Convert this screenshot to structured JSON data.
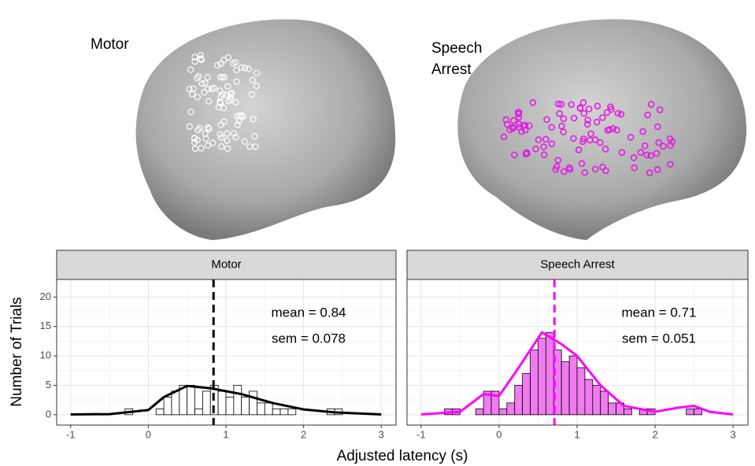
{
  "brain_labels": [
    "Motor",
    "Speech Arrest"
  ],
  "xlabel": "Adjusted latency (s)",
  "ylabel": "Number of Trials",
  "chart_data": [
    {
      "type": "histogram",
      "title": "Motor",
      "bins": [
        -1,
        -0.9,
        -0.8,
        -0.7,
        -0.6,
        -0.5,
        -0.4,
        -0.3,
        -0.2,
        -0.1,
        0,
        0.1,
        0.2,
        0.3,
        0.4,
        0.5,
        0.6,
        0.7,
        0.8,
        0.9,
        1,
        1.1,
        1.2,
        1.3,
        1.4,
        1.5,
        1.6,
        1.7,
        1.8,
        1.9,
        2,
        2.1,
        2.2,
        2.3,
        2.4,
        2.5,
        2.6,
        2.7,
        2.8,
        2.9,
        3
      ],
      "counts": [
        0,
        0,
        0,
        0,
        0,
        0,
        0,
        1,
        0,
        0,
        0,
        1,
        3,
        4,
        5,
        5,
        1,
        4,
        5,
        4,
        3,
        5,
        3,
        4,
        2,
        2,
        1,
        1,
        1,
        0,
        0,
        0,
        0,
        1,
        1,
        0,
        0,
        0,
        0,
        0
      ],
      "color": "#ffffff",
      "curve_color": "#000000",
      "density": {
        "x": [
          -1,
          -0.5,
          0,
          0.2,
          0.5,
          0.8,
          1.2,
          1.6,
          2,
          2.4,
          3
        ],
        "y": [
          0.05,
          0.1,
          0.8,
          3,
          4.9,
          4.5,
          3.5,
          2,
          0.9,
          0.4,
          0.05
        ]
      },
      "mean_line": 0.84,
      "annotations": [
        "mean = 0.84",
        "sem = 0.078"
      ],
      "xlim": [
        -1.18,
        3.19
      ],
      "ylim": [
        -1.76,
        23.0
      ],
      "xticks": [
        -1,
        0,
        1,
        2,
        3
      ],
      "yticks": [
        0,
        5,
        10,
        15,
        20
      ],
      "ytick_labels": true,
      "grid": true
    },
    {
      "type": "histogram",
      "title": "Speech Arrest",
      "bins": [
        -1,
        -0.9,
        -0.8,
        -0.7,
        -0.6,
        -0.5,
        -0.4,
        -0.3,
        -0.2,
        -0.1,
        0,
        0.1,
        0.2,
        0.3,
        0.4,
        0.5,
        0.6,
        0.7,
        0.8,
        0.9,
        1,
        1.1,
        1.2,
        1.3,
        1.4,
        1.5,
        1.6,
        1.7,
        1.8,
        1.9,
        2,
        2.1,
        2.2,
        2.3,
        2.4,
        2.5,
        2.6,
        2.7,
        2.8,
        2.9,
        3
      ],
      "counts": [
        0,
        0,
        0,
        1,
        1,
        0,
        0,
        1,
        4,
        4,
        1,
        2,
        5,
        7,
        11,
        13,
        14,
        11,
        9,
        10,
        8,
        6,
        5,
        4,
        2,
        2,
        1,
        0,
        1,
        1,
        0,
        0,
        0,
        0,
        1,
        1,
        0,
        0,
        0,
        0
      ],
      "color": "#f07cf0",
      "curve_color": "#ff00ff",
      "density": {
        "x": [
          -1,
          -0.5,
          -0.2,
          0,
          0.2,
          0.4,
          0.55,
          0.8,
          1,
          1.3,
          1.6,
          2,
          2.3,
          2.5,
          2.7,
          3
        ],
        "y": [
          0.05,
          0.5,
          3.5,
          3.2,
          7,
          11,
          14,
          12,
          10,
          5,
          1.5,
          0.5,
          1.2,
          1.5,
          0.5,
          0.05
        ]
      },
      "mean_line": 0.71,
      "annotations": [
        "mean = 0.71",
        "sem = 0.051"
      ],
      "xlim": [
        -1.18,
        3.19
      ],
      "ylim": [
        -1.76,
        23.0
      ],
      "xticks": [
        -1,
        0,
        1,
        2,
        3
      ],
      "yticks": [
        0,
        5,
        10,
        15,
        20
      ],
      "ytick_labels": false,
      "grid": true
    }
  ]
}
